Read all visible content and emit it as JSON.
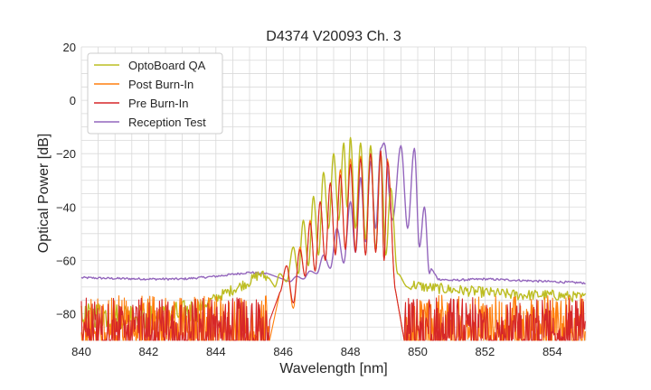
{
  "chart_data": {
    "type": "line",
    "title": "D4374 V20093 Ch. 3",
    "xlabel": "Wavelength [nm]",
    "ylabel": "Optical Power [dB]",
    "xlim": [
      840,
      855
    ],
    "ylim": [
      -90,
      20
    ],
    "xticks": [
      840,
      842,
      844,
      846,
      848,
      850,
      852,
      854
    ],
    "yticks": [
      20,
      0,
      -20,
      -40,
      -60,
      -80
    ],
    "xtick_labels": [
      "840",
      "842",
      "844",
      "846",
      "848",
      "850",
      "852",
      "854"
    ],
    "ytick_labels": [
      "20",
      "0",
      "−20",
      "−40",
      "−60",
      "−80"
    ],
    "grid": true,
    "legend_position": "top-left",
    "series": [
      {
        "name": "OptoBoard QA",
        "color": "#bcbd22",
        "noise_floor": [
          [
            840,
            -82
          ],
          [
            840.5,
            -80
          ],
          [
            841,
            -81
          ],
          [
            841.5,
            -80
          ],
          [
            842,
            -82
          ],
          [
            842.5,
            -81
          ],
          [
            843,
            -80
          ],
          [
            843.5,
            -78
          ],
          [
            844,
            -74
          ],
          [
            844.5,
            -71
          ],
          [
            845,
            -68
          ],
          [
            845.3,
            -65
          ],
          [
            845.6,
            -67
          ]
        ],
        "noise_floor_right": [
          [
            849.8,
            -69
          ],
          [
            850.2,
            -70
          ],
          [
            851,
            -71
          ],
          [
            852,
            -72
          ],
          [
            853,
            -73
          ],
          [
            854,
            -73
          ],
          [
            855,
            -74
          ]
        ],
        "peaks": [
          [
            845.9,
            -65
          ],
          [
            846.3,
            -55
          ],
          [
            846.6,
            -45
          ],
          [
            846.9,
            -36
          ],
          [
            847.2,
            -27
          ],
          [
            847.5,
            -20
          ],
          [
            847.8,
            -16
          ],
          [
            848.0,
            -14
          ],
          [
            848.3,
            -16
          ],
          [
            848.6,
            -17
          ],
          [
            848.9,
            -20
          ],
          [
            849.2,
            -33
          ]
        ],
        "valleys": [
          [
            845.75,
            -70
          ],
          [
            846.1,
            -68
          ],
          [
            846.45,
            -65
          ],
          [
            846.75,
            -62
          ],
          [
            847.05,
            -58
          ],
          [
            847.35,
            -48
          ],
          [
            847.65,
            -45
          ],
          [
            847.9,
            -40
          ],
          [
            848.15,
            -48
          ],
          [
            848.45,
            -52
          ],
          [
            848.75,
            -56
          ],
          [
            849.05,
            -58
          ],
          [
            849.4,
            -65
          ],
          [
            849.7,
            -70
          ]
        ]
      },
      {
        "name": "Post Burn-In",
        "color": "#ff7f0e",
        "noise_floor": [
          [
            840,
            -84
          ],
          [
            842,
            -84
          ],
          [
            844,
            -84
          ],
          [
            845.6,
            -84
          ]
        ],
        "noise_floor_right": [
          [
            849.6,
            -84
          ],
          [
            852,
            -84
          ],
          [
            855,
            -84
          ]
        ],
        "peaks": [
          [
            846.1,
            -62
          ],
          [
            846.5,
            -55
          ],
          [
            846.8,
            -45
          ],
          [
            847.1,
            -38
          ],
          [
            847.4,
            -31
          ],
          [
            847.7,
            -26
          ],
          [
            848.0,
            -22
          ],
          [
            848.3,
            -21
          ],
          [
            848.6,
            -20
          ],
          [
            848.9,
            -19
          ],
          [
            849.1,
            -22
          ]
        ],
        "valleys": [
          [
            845.9,
            -72
          ],
          [
            846.3,
            -78
          ],
          [
            846.65,
            -66
          ],
          [
            846.95,
            -64
          ],
          [
            847.25,
            -60
          ],
          [
            847.55,
            -57
          ],
          [
            847.85,
            -55
          ],
          [
            848.15,
            -56
          ],
          [
            848.45,
            -58
          ],
          [
            848.75,
            -57
          ],
          [
            849.0,
            -60
          ],
          [
            849.35,
            -72
          ]
        ]
      },
      {
        "name": "Pre Burn-In",
        "color": "#d62728",
        "noise_floor": [
          [
            840,
            -85
          ],
          [
            842,
            -85
          ],
          [
            844,
            -85
          ],
          [
            845.6,
            -85
          ]
        ],
        "noise_floor_right": [
          [
            849.6,
            -85
          ],
          [
            852,
            -85
          ],
          [
            855,
            -85
          ]
        ],
        "peaks": [
          [
            846.1,
            -62
          ],
          [
            846.5,
            -56
          ],
          [
            846.8,
            -46
          ],
          [
            847.1,
            -38
          ],
          [
            847.4,
            -31
          ],
          [
            847.7,
            -28
          ],
          [
            848.0,
            -24
          ],
          [
            848.3,
            -22
          ],
          [
            848.6,
            -20
          ],
          [
            848.9,
            -19
          ],
          [
            849.1,
            -23
          ]
        ],
        "valleys": [
          [
            845.9,
            -72
          ],
          [
            846.3,
            -76
          ],
          [
            846.65,
            -66
          ],
          [
            846.95,
            -64
          ],
          [
            847.25,
            -60
          ],
          [
            847.55,
            -58
          ],
          [
            847.85,
            -56
          ],
          [
            848.15,
            -57
          ],
          [
            848.45,
            -58
          ],
          [
            848.75,
            -57
          ],
          [
            849.0,
            -60
          ],
          [
            849.35,
            -72
          ]
        ]
      },
      {
        "name": "Reception Test",
        "color": "#9467bd",
        "noise_floor": [
          [
            840,
            -66.5
          ],
          [
            841,
            -66.8
          ],
          [
            842,
            -67
          ],
          [
            843,
            -67
          ],
          [
            844,
            -66
          ],
          [
            845,
            -64.5
          ],
          [
            845.5,
            -65
          ]
        ],
        "noise_floor_right": [
          [
            850.4,
            -63
          ],
          [
            850.6,
            -67
          ],
          [
            851,
            -67.5
          ],
          [
            852,
            -67
          ],
          [
            853,
            -67.5
          ],
          [
            854,
            -68
          ],
          [
            855,
            -68.5
          ]
        ],
        "peaks": [
          [
            846.4,
            -66
          ],
          [
            846.8,
            -64
          ],
          [
            847.2,
            -58
          ],
          [
            847.6,
            -48
          ],
          [
            848.0,
            -38
          ],
          [
            848.3,
            -29
          ],
          [
            848.6,
            -23
          ],
          [
            848.9,
            -18
          ],
          [
            849.0,
            -16
          ],
          [
            849.5,
            -17
          ],
          [
            849.9,
            -18
          ],
          [
            850.2,
            -40
          ]
        ],
        "valleys": [
          [
            846.2,
            -68
          ],
          [
            846.6,
            -67
          ],
          [
            847.0,
            -65
          ],
          [
            847.4,
            -63
          ],
          [
            847.8,
            -61
          ],
          [
            848.15,
            -57
          ],
          [
            848.45,
            -53
          ],
          [
            848.75,
            -48
          ],
          [
            849.25,
            -45
          ],
          [
            849.7,
            -48
          ],
          [
            850.05,
            -55
          ],
          [
            850.35,
            -65
          ]
        ]
      }
    ]
  }
}
